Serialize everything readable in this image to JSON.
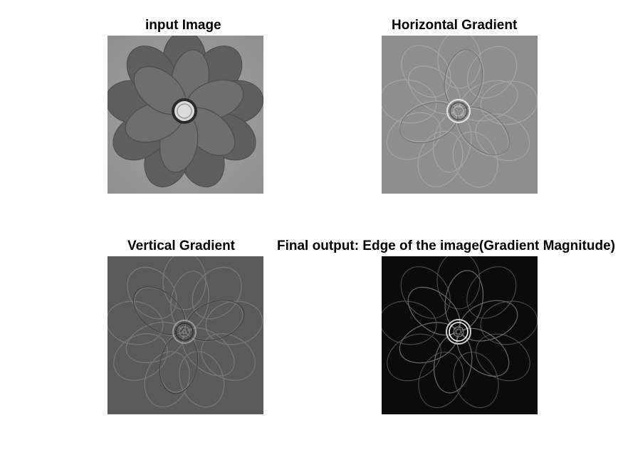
{
  "panels": [
    {
      "title": "input Image",
      "image": "flower-grayscale-photo",
      "background": "#9a9a9a"
    },
    {
      "title": "Horizontal Gradient",
      "image": "horizontal-gradient-map",
      "background": "#8c8c8c"
    },
    {
      "title": "Vertical Gradient",
      "image": "vertical-gradient-map",
      "background": "#5a5a5a"
    },
    {
      "title": "Final output: Edge of the image(Gradient Magnitude)",
      "image": "gradient-magnitude-map",
      "background": "#0a0a0a"
    }
  ]
}
